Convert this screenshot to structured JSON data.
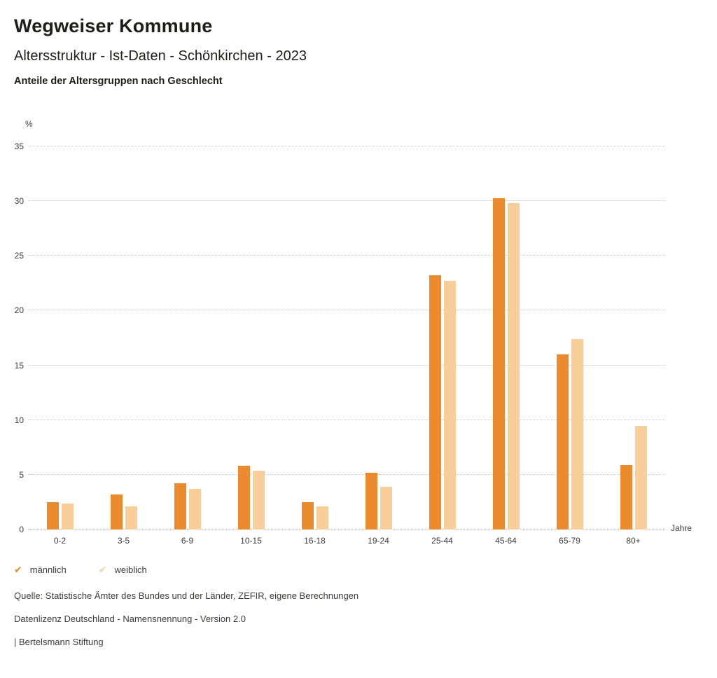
{
  "header": {
    "title": "Wegweiser Kommune",
    "subtitle": "Altersstruktur - Ist-Daten - Schönkirchen - 2023",
    "description": "Anteile der Altersgruppen nach Geschlecht"
  },
  "chart_data": {
    "type": "bar",
    "title": "Anteile der Altersgruppen nach Geschlecht",
    "unit_label": "%",
    "x_unit_label": "Jahre",
    "categories": [
      "0-2",
      "3-5",
      "6-9",
      "10-15",
      "16-18",
      "19-24",
      "25-44",
      "45-64",
      "65-79",
      "80+"
    ],
    "series": [
      {
        "name": "männlich",
        "color": "#EC8B2D",
        "values": [
          2.5,
          3.2,
          4.2,
          5.8,
          2.5,
          5.2,
          23.2,
          30.3,
          16.0,
          5.9
        ]
      },
      {
        "name": "weiblich",
        "color": "#F8CE9B",
        "values": [
          2.4,
          2.1,
          3.7,
          5.4,
          2.1,
          3.9,
          22.7,
          29.8,
          17.4,
          9.5
        ]
      }
    ],
    "ylim": [
      0,
      35
    ],
    "ytick_step": 5,
    "grid": "dotted-horizontal",
    "legend_position": "bottom-left"
  },
  "legend": {
    "items": [
      {
        "label": "männlich",
        "color": "#EC8B2D",
        "marker": "✔"
      },
      {
        "label": "weiblich",
        "color": "#F8CE9B",
        "marker": "✔"
      }
    ]
  },
  "footer": {
    "source": "Quelle: Statistische Ämter des Bundes und der Länder, ZEFIR, eigene Berechnungen",
    "license": "Datenlizenz Deutschland - Namensnennung - Version 2.0",
    "attribution": "| Bertelsmann Stiftung"
  }
}
